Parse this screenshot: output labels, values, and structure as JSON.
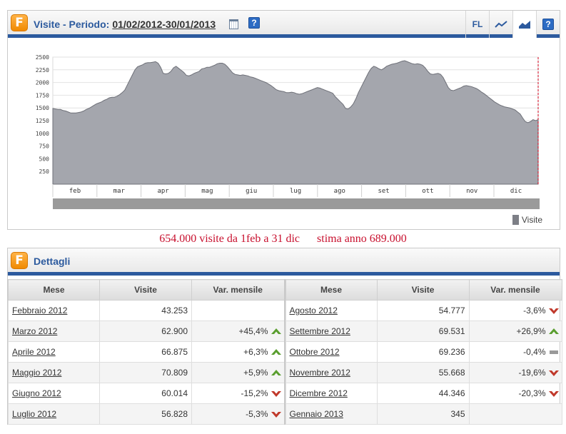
{
  "chart_panel": {
    "title": "Visite - Periodo:",
    "period": "01/02/2012-30/01/2013",
    "toolbar": {
      "fl_label": "FL"
    },
    "legend": "Visite"
  },
  "chart_data": {
    "type": "area",
    "series": [
      {
        "name": "Visite",
        "color": "#a4a6ad"
      }
    ],
    "x_labels": [
      "feb",
      "mar",
      "apr",
      "mag",
      "giu",
      "lug",
      "ago",
      "set",
      "ott",
      "nov",
      "dic"
    ],
    "y_ticks": [
      250,
      500,
      750,
      1000,
      1250,
      1500,
      1750,
      2000,
      2250,
      2500
    ],
    "ylim": [
      0,
      2500
    ],
    "values": [
      1490,
      1480,
      1470,
      1470,
      1450,
      1440,
      1420,
      1400,
      1400,
      1400,
      1410,
      1420,
      1440,
      1470,
      1490,
      1520,
      1550,
      1580,
      1600,
      1620,
      1650,
      1670,
      1700,
      1710,
      1710,
      1730,
      1760,
      1800,
      1850,
      1950,
      2050,
      2150,
      2250,
      2310,
      2330,
      2350,
      2380,
      2390,
      2390,
      2400,
      2410,
      2380,
      2300,
      2180,
      2170,
      2180,
      2220,
      2290,
      2320,
      2280,
      2240,
      2200,
      2140,
      2130,
      2150,
      2180,
      2200,
      2220,
      2270,
      2280,
      2300,
      2300,
      2320,
      2340,
      2370,
      2380,
      2380,
      2360,
      2310,
      2250,
      2190,
      2160,
      2150,
      2140,
      2150,
      2140,
      2130,
      2110,
      2100,
      2080,
      2060,
      2040,
      2020,
      2000,
      1970,
      1940,
      1900,
      1860,
      1840,
      1830,
      1820,
      1800,
      1800,
      1810,
      1800,
      1780,
      1770,
      1780,
      1800,
      1820,
      1840,
      1860,
      1880,
      1900,
      1890,
      1870,
      1850,
      1830,
      1810,
      1790,
      1720,
      1670,
      1620,
      1570,
      1490,
      1480,
      1520,
      1580,
      1680,
      1800,
      1900,
      2000,
      2100,
      2200,
      2280,
      2320,
      2300,
      2270,
      2250,
      2280,
      2320,
      2340,
      2360,
      2370,
      2380,
      2400,
      2420,
      2430,
      2410,
      2390,
      2370,
      2360,
      2370,
      2360,
      2340,
      2290,
      2220,
      2170,
      2160,
      2170,
      2180,
      2160,
      2100,
      2000,
      1900,
      1850,
      1840,
      1860,
      1880,
      1900,
      1930,
      1940,
      1930,
      1920,
      1900,
      1880,
      1850,
      1810,
      1780,
      1740,
      1700,
      1660,
      1620,
      1590,
      1560,
      1540,
      1520,
      1510,
      1500,
      1480,
      1460,
      1420,
      1380,
      1300,
      1230,
      1210,
      1230,
      1270,
      1250,
      1270
    ]
  },
  "summary": {
    "visits_text": "654.000 visite da 1feb a 31 dic",
    "estimate_text": "stima anno 689.000"
  },
  "details": {
    "title": "Dettagli",
    "headers": {
      "mese": "Mese",
      "visite": "Visite",
      "var": "Var. mensile"
    },
    "left_rows": [
      {
        "mese": "Febbraio 2012",
        "visite": "43.253",
        "var": "",
        "trend": "none"
      },
      {
        "mese": "Marzo 2012",
        "visite": "62.900",
        "var": "+45,4%",
        "trend": "up"
      },
      {
        "mese": "Aprile 2012",
        "visite": "66.875",
        "var": "+6,3%",
        "trend": "up"
      },
      {
        "mese": "Maggio 2012",
        "visite": "70.809",
        "var": "+5,9%",
        "trend": "up"
      },
      {
        "mese": "Giugno 2012",
        "visite": "60.014",
        "var": "-15,2%",
        "trend": "down"
      },
      {
        "mese": "Luglio 2012",
        "visite": "56.828",
        "var": "-5,3%",
        "trend": "down"
      }
    ],
    "right_rows": [
      {
        "mese": "Agosto 2012",
        "visite": "54.777",
        "var": "-3,6%",
        "trend": "down"
      },
      {
        "mese": "Settembre 2012",
        "visite": "69.531",
        "var": "+26,9%",
        "trend": "up"
      },
      {
        "mese": "Ottobre 2012",
        "visite": "69.236",
        "var": "-0,4%",
        "trend": "flat"
      },
      {
        "mese": "Novembre 2012",
        "visite": "55.668",
        "var": "-19,6%",
        "trend": "down"
      },
      {
        "mese": "Dicembre 2012",
        "visite": "44.346",
        "var": "-20,3%",
        "trend": "down"
      },
      {
        "mese": "Gennaio 2013",
        "visite": "345",
        "var": "",
        "trend": "none"
      }
    ]
  },
  "colors": {
    "accent": "#2c5a9e",
    "summary": "#c8102e",
    "up": "#5a9e2f",
    "down": "#c0392b",
    "flat": "#999999"
  }
}
